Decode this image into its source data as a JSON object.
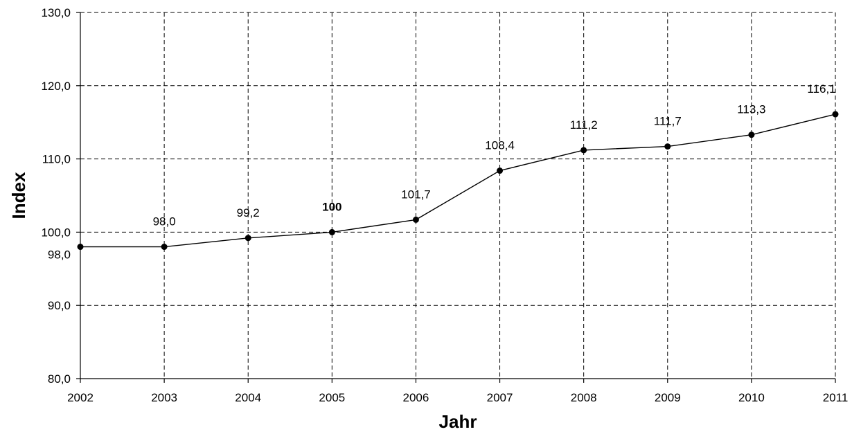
{
  "chart_data": {
    "type": "line",
    "title": "",
    "xlabel": "Jahr",
    "ylabel": "Index",
    "x": [
      "2002",
      "2003",
      "2004",
      "2005",
      "2006",
      "2007",
      "2008",
      "2009",
      "2010",
      "2011"
    ],
    "series": [
      {
        "values": [
          98.0,
          98.0,
          99.2,
          100.0,
          101.7,
          108.4,
          111.2,
          111.7,
          113.3,
          116.1
        ]
      }
    ],
    "data_labels": [
      "",
      "98,0",
      "99,2",
      "100",
      "101,7",
      "108,4",
      "111,2",
      "111,7",
      "113,3",
      "116,1"
    ],
    "bold_label_index": 3,
    "ylim": [
      80,
      130
    ],
    "y_ticks": [
      80,
      90,
      100,
      110,
      120,
      130
    ],
    "y_tick_labels": [
      "80,0",
      "90,0",
      "100,0",
      "110,0",
      "120,0",
      "130,0"
    ],
    "extra_y_label": {
      "value": 98.0,
      "text": "98,0"
    },
    "grid": true,
    "line_color": "#000000"
  }
}
